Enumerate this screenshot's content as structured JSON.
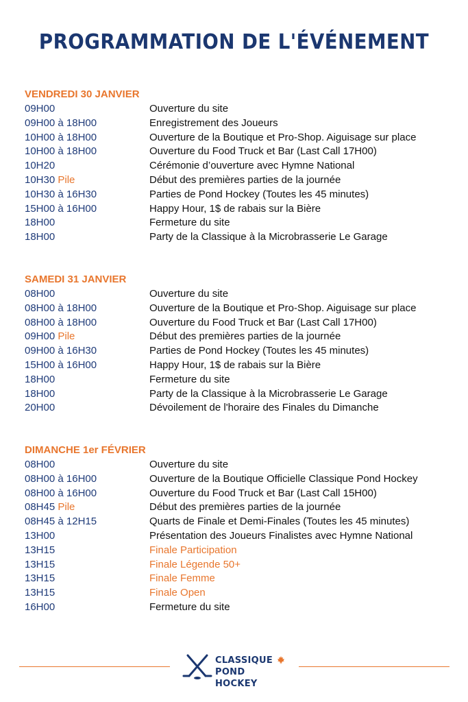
{
  "title": "PROGRAMMATION DE L'ÉVÉNEMENT",
  "colors": {
    "navy": "#1b3770",
    "orange": "#e8762d",
    "text": "#111111"
  },
  "days": [
    {
      "heading": "VENDREDI 30 JANVIER",
      "rows": [
        {
          "time": "09H00",
          "note": "",
          "event": "Ouverture du site",
          "highlight": false
        },
        {
          "time": "09H00 à 18H00",
          "note": "",
          "event": "Enregistrement des Joueurs",
          "highlight": false
        },
        {
          "time": "10H00 à 18H00",
          "note": "",
          "event": "Ouverture de la Boutique et Pro-Shop. Aiguisage sur place",
          "highlight": false
        },
        {
          "time": "10H00 à 18H00",
          "note": "",
          "event": "Ouverture du Food Truck et Bar (Last Call 17H00)",
          "highlight": false
        },
        {
          "time": "10H20",
          "note": "",
          "event": "Cérémonie d’ouverture avec Hymne National",
          "highlight": false
        },
        {
          "time": "10H30",
          "note": "Pile",
          "event": "Début des premières parties de la journée",
          "highlight": false
        },
        {
          "time": "10H30 à 16H30",
          "note": "",
          "event": "Parties de Pond Hockey (Toutes les 45 minutes)",
          "highlight": false
        },
        {
          "time": "15H00 à 16H00",
          "note": "",
          "event": "Happy Hour, 1$ de rabais sur la Bière",
          "highlight": false
        },
        {
          "time": "18H00",
          "note": "",
          "event": "Fermeture du site",
          "highlight": false
        },
        {
          "time": "18H00",
          "note": "",
          "event": "Party de la Classique à la Microbrasserie Le Garage",
          "highlight": false
        }
      ]
    },
    {
      "heading": "SAMEDI 31 JANVIER",
      "rows": [
        {
          "time": "08H00",
          "note": "",
          "event": "Ouverture du site",
          "highlight": false
        },
        {
          "time": "08H00 à 18H00",
          "note": "",
          "event": "Ouverture de la Boutique et Pro-Shop. Aiguisage sur place",
          "highlight": false
        },
        {
          "time": "08H00 à 18H00",
          "note": "",
          "event": "Ouverture du Food Truck et Bar (Last Call 17H00)",
          "highlight": false
        },
        {
          "time": "09H00",
          "note": "Pile",
          "event": "Début des premières parties de la journée",
          "highlight": false
        },
        {
          "time": "09H00 à 16H30",
          "note": "",
          "event": "Parties de Pond Hockey (Toutes les 45 minutes)",
          "highlight": false
        },
        {
          "time": "15H00 à 16H00",
          "note": "",
          "event": "Happy Hour, 1$ de rabais sur la Bière",
          "highlight": false
        },
        {
          "time": "18H00",
          "note": "",
          "event": "Fermeture du site",
          "highlight": false
        },
        {
          "time": "18H00",
          "note": "",
          "event": "Party de la Classique à la Microbrasserie Le Garage",
          "highlight": false
        },
        {
          "time": "20H00",
          "note": "",
          "event": "Dévoilement de l'horaire des Finales du Dimanche",
          "highlight": false
        }
      ]
    },
    {
      "heading": "DIMANCHE 1er FÉVRIER",
      "rows": [
        {
          "time": "08H00",
          "note": "",
          "event": "Ouverture du site",
          "highlight": false
        },
        {
          "time": "08H00 à 16H00",
          "note": "",
          "event": "Ouverture de la Boutique Officielle Classique Pond Hockey",
          "highlight": false
        },
        {
          "time": "08H00 à 16H00",
          "note": "",
          "event": "Ouverture du Food Truck et Bar (Last Call 15H00)",
          "highlight": false
        },
        {
          "time": "08H45",
          "note": "Pile",
          "event": "Début des premières parties de la journée",
          "highlight": false
        },
        {
          "time": "08H45 à 12H15",
          "note": "",
          "event": "Quarts de Finale et Demi-Finales  (Toutes les 45 minutes)",
          "highlight": false
        },
        {
          "time": "13H00",
          "note": "",
          "event": "Présentation des Joueurs Finalistes avec Hymne National",
          "highlight": false
        },
        {
          "time": "13H15",
          "note": "",
          "event": "Finale Participation",
          "highlight": true
        },
        {
          "time": "13H15",
          "note": "",
          "event": "Finale Légende 50+",
          "highlight": true
        },
        {
          "time": "13H15",
          "note": "",
          "event": "Finale Femme",
          "highlight": true
        },
        {
          "time": "13H15",
          "note": "",
          "event": "Finale Open",
          "highlight": true
        },
        {
          "time": "16H00",
          "note": "",
          "event": "Fermeture du site",
          "highlight": false
        }
      ]
    }
  ],
  "logo": {
    "line1": "CLASSIQUE",
    "line2": "POND HOCKEY",
    "icons": [
      "crossed-hockey-sticks-icon",
      "maple-leaf-icon"
    ]
  }
}
